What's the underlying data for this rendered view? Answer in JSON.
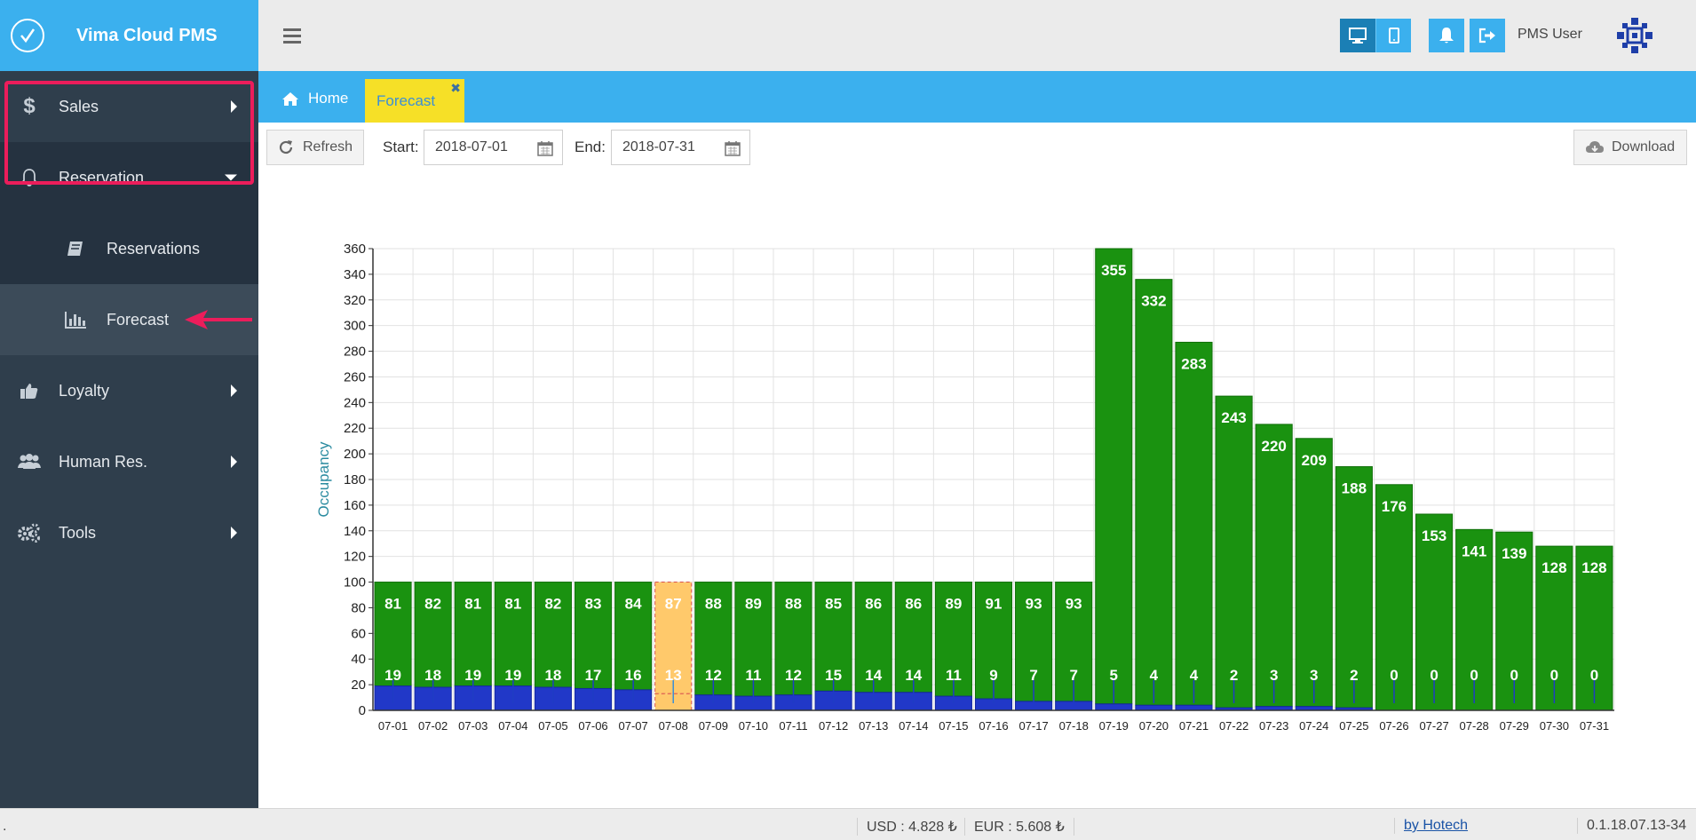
{
  "app": {
    "title": "Vima Cloud PMS"
  },
  "sidebar": {
    "items": [
      {
        "label": "Sales",
        "icon": "dollar-icon"
      },
      {
        "label": "Reservation",
        "icon": "bell-icon"
      },
      {
        "label": "Reservations",
        "icon": "book-icon"
      },
      {
        "label": "Forecast",
        "icon": "bar-chart-icon"
      },
      {
        "label": "Loyalty",
        "icon": "thumbs-up-icon"
      },
      {
        "label": "Human Res.",
        "icon": "users-icon"
      },
      {
        "label": "Tools",
        "icon": "gears-icon"
      }
    ]
  },
  "topbar": {
    "user_name": "PMS User"
  },
  "tabs": {
    "home": "Home",
    "forecast": "Forecast",
    "close": "✖"
  },
  "toolbar": {
    "refresh_label": "Refresh",
    "start_label": "Start:",
    "start_value": "2018-07-01",
    "end_label": "End:",
    "end_value": "2018-07-31",
    "download_label": "Download"
  },
  "colors": {
    "accent": "#3bb0ee",
    "sidebar": "#2f3e4c",
    "tab_active": "#f6e027",
    "highlight": "#ec1d5b",
    "bar_green": "#1a9210",
    "bar_blue": "#2138c8",
    "bar_selected": "#ffc96b"
  },
  "chart_data": {
    "type": "bar",
    "stacked": true,
    "ylabel": "Occupancy",
    "xlabel": "",
    "ylim": [
      0,
      360
    ],
    "yticks": [
      0,
      20,
      40,
      60,
      80,
      100,
      120,
      140,
      160,
      180,
      200,
      220,
      240,
      260,
      280,
      300,
      320,
      340,
      360
    ],
    "grid": true,
    "categories": [
      "07-01",
      "07-02",
      "07-03",
      "07-04",
      "07-05",
      "07-06",
      "07-07",
      "07-08",
      "07-09",
      "07-10",
      "07-11",
      "07-12",
      "07-13",
      "07-14",
      "07-15",
      "07-16",
      "07-17",
      "07-18",
      "07-19",
      "07-20",
      "07-21",
      "07-22",
      "07-23",
      "07-24",
      "07-25",
      "07-26",
      "07-27",
      "07-28",
      "07-29",
      "07-30",
      "07-31"
    ],
    "highlighted_category": "07-08",
    "series": [
      {
        "values": [
          19,
          18,
          19,
          19,
          18,
          17,
          16,
          13,
          12,
          11,
          12,
          15,
          14,
          14,
          11,
          9,
          7,
          7,
          5,
          4,
          4,
          2,
          3,
          3,
          2,
          0,
          0,
          0,
          0,
          0,
          0
        ]
      },
      {
        "values": [
          81,
          82,
          81,
          81,
          82,
          83,
          84,
          87,
          88,
          89,
          88,
          85,
          86,
          86,
          89,
          91,
          93,
          93,
          355,
          332,
          283,
          243,
          220,
          209,
          188,
          176,
          153,
          141,
          139,
          128,
          128
        ]
      }
    ]
  },
  "statusbar": {
    "dot": ".",
    "usd": "USD : 4.828 ₺",
    "eur": "EUR : 5.608 ₺",
    "by": "by Hotech",
    "version": "0.1.18.07.13-34"
  }
}
